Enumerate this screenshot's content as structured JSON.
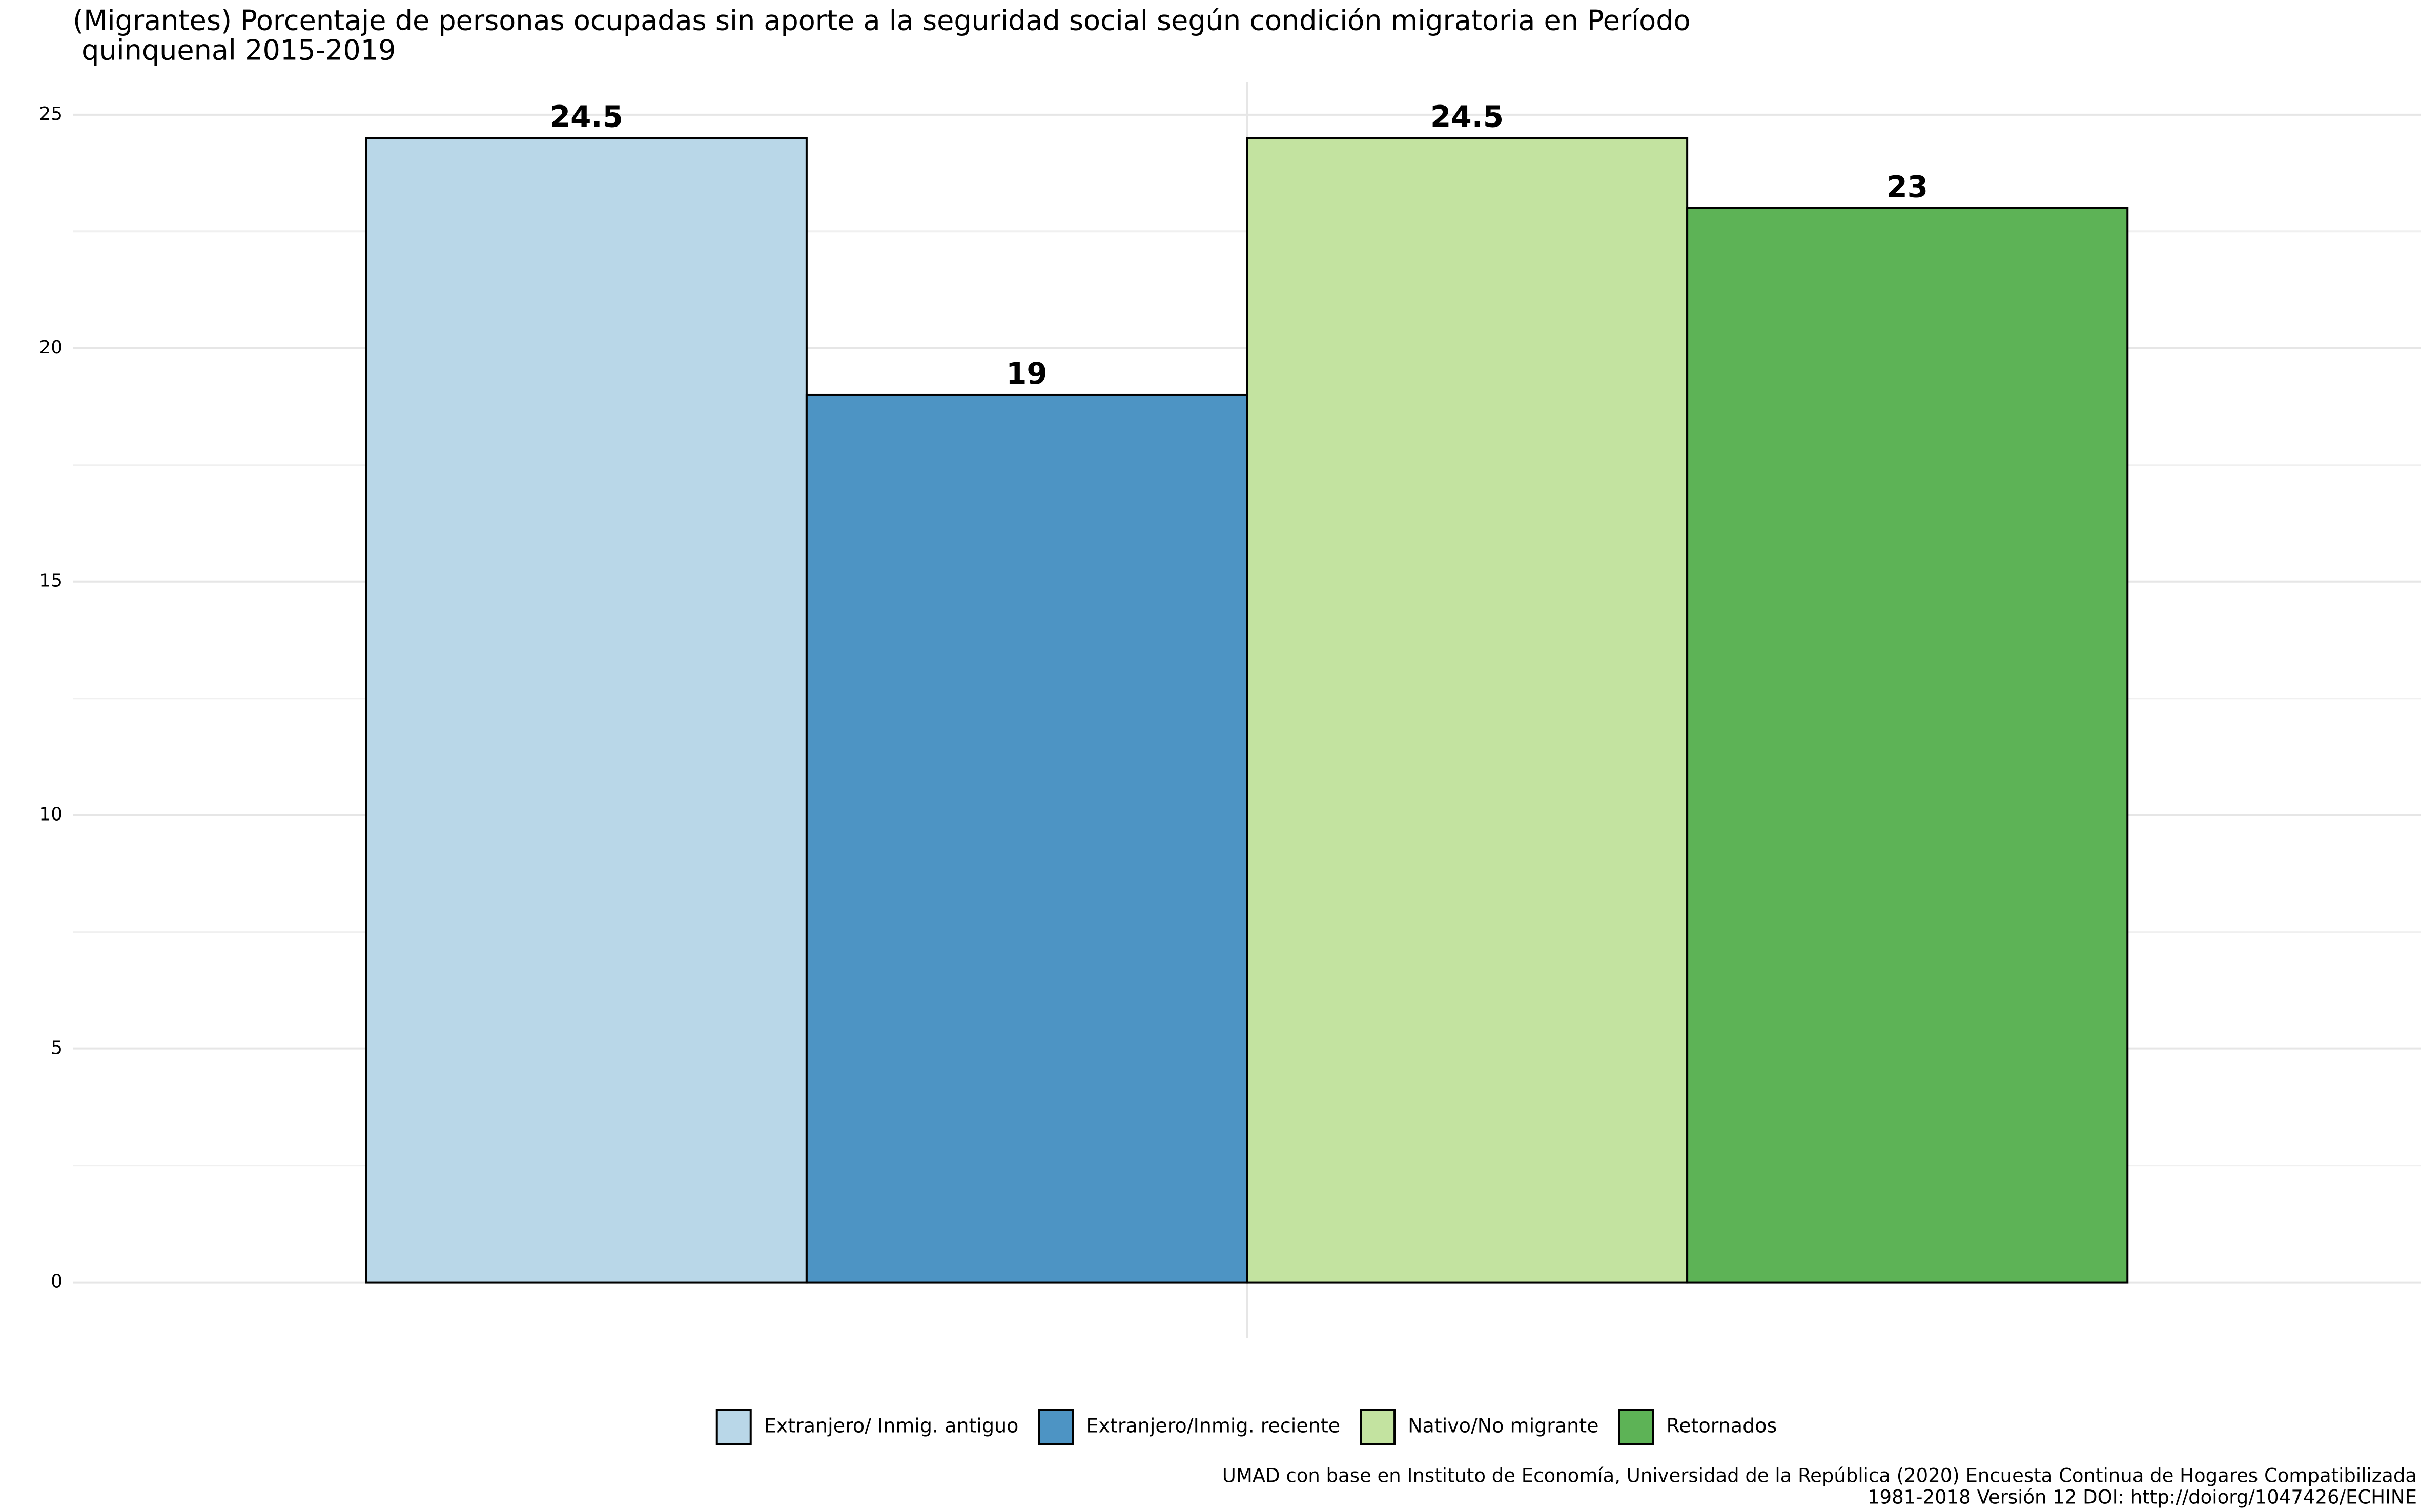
{
  "chart_data": {
    "type": "bar",
    "title": [
      "(Migrantes) Porcentaje de personas ocupadas sin aporte a la seguridad social según condición migratoria en Período",
      " quinquenal 2015-2019"
    ],
    "caption": [
      "UMAD con base en Instituto de Economía, Universidad de la República (2020) Encuesta Continua de Hogares Compatibilizada",
      "1981-2018 Versión 12 DOI: http://doiorg/1047426/ECHINE"
    ],
    "categories": [
      null
    ],
    "series": [
      {
        "name": "Extranjero/ Inmig. antiguo",
        "color": "#b9d7e8",
        "values": [
          24.5
        ]
      },
      {
        "name": "Extranjero/Inmig. reciente",
        "color": "#4d94c4",
        "values": [
          19
        ]
      },
      {
        "name": "Nativo/No migrante",
        "color": "#c3e3a0",
        "values": [
          24.5
        ]
      },
      {
        "name": "Retornados",
        "color": "#5db356",
        "values": [
          23
        ]
      }
    ],
    "ylim": [
      -1.2,
      25.7
    ],
    "yticks": [
      0,
      5,
      10,
      15,
      20,
      25
    ],
    "minor_yticks": [
      2.5,
      7.5,
      12.5,
      17.5,
      22.5
    ],
    "grid": true,
    "legend": "bottom"
  }
}
